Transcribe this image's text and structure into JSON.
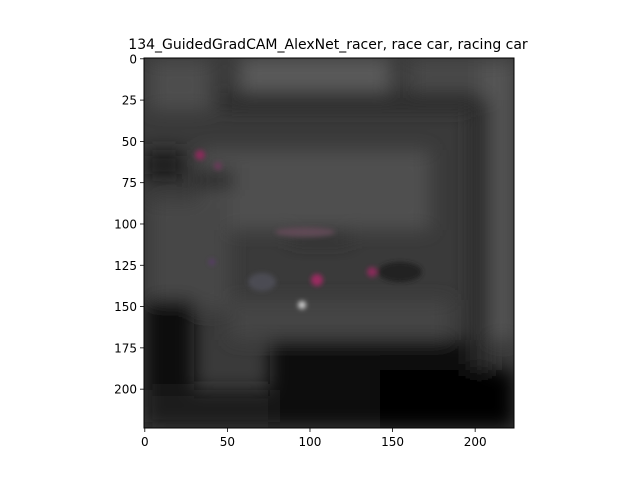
{
  "figure": {
    "title": "134_GuidedGradCAM_AlexNet_racer, race car, racing car"
  },
  "axes": {
    "x_ticks": [
      0,
      50,
      100,
      150,
      200
    ],
    "y_ticks": [
      0,
      25,
      50,
      75,
      100,
      125,
      150,
      175,
      200
    ],
    "x_range": [
      0,
      224
    ],
    "y_range": [
      0,
      224
    ],
    "y_inverted": true
  },
  "image": {
    "description_colors": {
      "base": "#3c3c3c",
      "dark": "#050505",
      "highlight": "#8a2a5a"
    }
  }
}
